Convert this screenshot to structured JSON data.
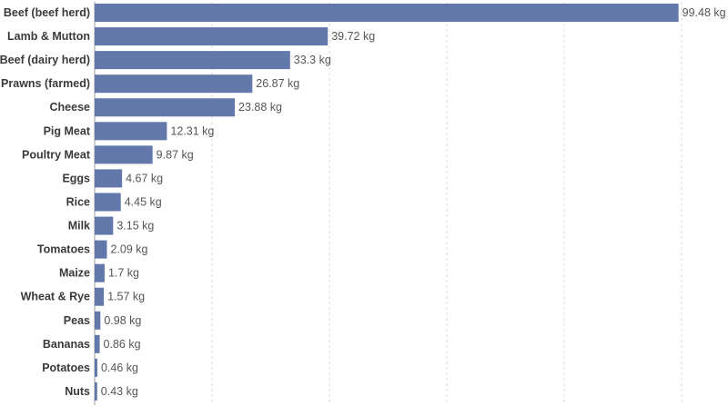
{
  "chart_data": {
    "type": "bar",
    "orientation": "horizontal",
    "categories": [
      "Beef (beef herd)",
      "Lamb & Mutton",
      "Beef (dairy herd)",
      "Prawns (farmed)",
      "Cheese",
      "Pig Meat",
      "Poultry Meat",
      "Eggs",
      "Rice",
      "Milk",
      "Tomatoes",
      "Maize",
      "Wheat & Rye",
      "Peas",
      "Bananas",
      "Potatoes",
      "Nuts"
    ],
    "values": [
      99.48,
      39.72,
      33.3,
      26.87,
      23.88,
      12.31,
      9.87,
      4.67,
      4.45,
      3.15,
      2.09,
      1.7,
      1.57,
      0.98,
      0.86,
      0.46,
      0.43
    ],
    "value_labels": [
      "99.48 kg",
      "39.72 kg",
      "33.3 kg",
      "26.87 kg",
      "23.88 kg",
      "12.31 kg",
      "9.87 kg",
      "4.67 kg",
      "4.45 kg",
      "3.15 kg",
      "2.09 kg",
      "1.7 kg",
      "1.57 kg",
      "0.98 kg",
      "0.86 kg",
      "0.46 kg",
      "0.43 kg"
    ],
    "unit": "kg",
    "xlim": [
      0,
      100
    ],
    "gridlines_at": [
      0,
      20,
      40,
      60,
      80,
      100
    ],
    "grid": true,
    "bar_color": "#6278ab",
    "title": "",
    "xlabel": "",
    "ylabel": ""
  }
}
